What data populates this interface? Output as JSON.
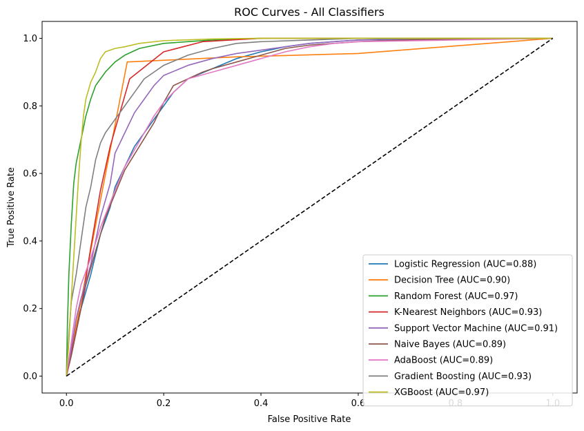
{
  "chart_data": {
    "type": "line",
    "title": "ROC Curves - All Classifiers",
    "xlabel": "False Positive Rate",
    "ylabel": "True Positive Rate",
    "xlim": [
      -0.05,
      1.05
    ],
    "ylim": [
      -0.05,
      1.05
    ],
    "xticks": [
      "0.0",
      "0.2",
      "0.4",
      "0.6",
      "0.8",
      "1.0"
    ],
    "yticks": [
      "0.0",
      "0.2",
      "0.4",
      "0.6",
      "0.8",
      "1.0"
    ],
    "grid": false,
    "legend_position": "lower-right",
    "series": [
      {
        "name": "Logistic Regression (AUC=0.88)",
        "color": "#1f77b4",
        "points": [
          [
            0,
            0
          ],
          [
            0.01,
            0.08
          ],
          [
            0.02,
            0.15
          ],
          [
            0.03,
            0.2
          ],
          [
            0.05,
            0.3
          ],
          [
            0.07,
            0.42
          ],
          [
            0.09,
            0.5
          ],
          [
            0.1,
            0.56
          ],
          [
            0.12,
            0.62
          ],
          [
            0.14,
            0.68
          ],
          [
            0.16,
            0.72
          ],
          [
            0.18,
            0.76
          ],
          [
            0.2,
            0.8
          ],
          [
            0.22,
            0.84
          ],
          [
            0.25,
            0.88
          ],
          [
            0.3,
            0.91
          ],
          [
            0.35,
            0.94
          ],
          [
            0.4,
            0.96
          ],
          [
            0.45,
            0.975
          ],
          [
            0.5,
            0.985
          ],
          [
            0.55,
            0.99
          ],
          [
            0.6,
            0.995
          ],
          [
            0.7,
            0.998
          ],
          [
            1,
            1
          ]
        ]
      },
      {
        "name": "Decision Tree (AUC=0.90)",
        "color": "#ff7f0e",
        "points": [
          [
            0,
            0
          ],
          [
            0.125,
            0.93
          ],
          [
            0.35,
            0.945
          ],
          [
            0.6,
            0.955
          ],
          [
            1,
            1
          ]
        ]
      },
      {
        "name": "Random Forest (AUC=0.97)",
        "color": "#2ca02c",
        "points": [
          [
            0,
            0
          ],
          [
            0.002,
            0.15
          ],
          [
            0.005,
            0.3
          ],
          [
            0.01,
            0.45
          ],
          [
            0.015,
            0.57
          ],
          [
            0.02,
            0.63
          ],
          [
            0.03,
            0.7
          ],
          [
            0.04,
            0.77
          ],
          [
            0.05,
            0.82
          ],
          [
            0.06,
            0.86
          ],
          [
            0.07,
            0.88
          ],
          [
            0.08,
            0.9
          ],
          [
            0.1,
            0.93
          ],
          [
            0.12,
            0.95
          ],
          [
            0.15,
            0.97
          ],
          [
            0.2,
            0.985
          ],
          [
            0.25,
            0.99
          ],
          [
            0.3,
            0.995
          ],
          [
            0.4,
            1.0
          ],
          [
            1,
            1
          ]
        ]
      },
      {
        "name": "K-Nearest Neighbors (AUC=0.93)",
        "color": "#d62728",
        "points": [
          [
            0,
            0
          ],
          [
            0.03,
            0.2
          ],
          [
            0.05,
            0.38
          ],
          [
            0.07,
            0.55
          ],
          [
            0.09,
            0.68
          ],
          [
            0.11,
            0.78
          ],
          [
            0.13,
            0.88
          ],
          [
            0.2,
            0.96
          ],
          [
            0.28,
            0.99
          ],
          [
            0.4,
            1.0
          ],
          [
            1,
            1
          ]
        ]
      },
      {
        "name": "Support Vector Machine (AUC=0.91)",
        "color": "#9467bd",
        "points": [
          [
            0,
            0
          ],
          [
            0.01,
            0.08
          ],
          [
            0.02,
            0.17
          ],
          [
            0.03,
            0.23
          ],
          [
            0.05,
            0.33
          ],
          [
            0.07,
            0.47
          ],
          [
            0.09,
            0.57
          ],
          [
            0.1,
            0.66
          ],
          [
            0.12,
            0.72
          ],
          [
            0.14,
            0.78
          ],
          [
            0.16,
            0.82
          ],
          [
            0.18,
            0.86
          ],
          [
            0.2,
            0.89
          ],
          [
            0.25,
            0.92
          ],
          [
            0.3,
            0.94
          ],
          [
            0.35,
            0.955
          ],
          [
            0.4,
            0.965
          ],
          [
            0.45,
            0.975
          ],
          [
            0.5,
            0.985
          ],
          [
            0.55,
            0.99
          ],
          [
            0.6,
            0.995
          ],
          [
            1,
            1
          ]
        ]
      },
      {
        "name": "Naive Bayes (AUC=0.89)",
        "color": "#8c564b",
        "points": [
          [
            0,
            0
          ],
          [
            0.01,
            0.06
          ],
          [
            0.02,
            0.13
          ],
          [
            0.03,
            0.2
          ],
          [
            0.04,
            0.27
          ],
          [
            0.05,
            0.32
          ],
          [
            0.07,
            0.42
          ],
          [
            0.08,
            0.47
          ],
          [
            0.1,
            0.54
          ],
          [
            0.12,
            0.61
          ],
          [
            0.15,
            0.68
          ],
          [
            0.18,
            0.75
          ],
          [
            0.2,
            0.81
          ],
          [
            0.22,
            0.86
          ],
          [
            0.25,
            0.88
          ],
          [
            0.28,
            0.9
          ],
          [
            0.3,
            0.91
          ],
          [
            0.35,
            0.93
          ],
          [
            0.4,
            0.95
          ],
          [
            0.45,
            0.97
          ],
          [
            0.5,
            0.98
          ],
          [
            0.6,
            0.99
          ],
          [
            0.7,
            0.995
          ],
          [
            1,
            1
          ]
        ]
      },
      {
        "name": "AdaBoost (AUC=0.89)",
        "color": "#e377c2",
        "points": [
          [
            0,
            0
          ],
          [
            0.01,
            0.1
          ],
          [
            0.02,
            0.2
          ],
          [
            0.03,
            0.27
          ],
          [
            0.05,
            0.35
          ],
          [
            0.07,
            0.44
          ],
          [
            0.1,
            0.55
          ],
          [
            0.12,
            0.62
          ],
          [
            0.14,
            0.67
          ],
          [
            0.16,
            0.72
          ],
          [
            0.18,
            0.77
          ],
          [
            0.2,
            0.81
          ],
          [
            0.22,
            0.84
          ],
          [
            0.25,
            0.88
          ],
          [
            0.3,
            0.9
          ],
          [
            0.35,
            0.92
          ],
          [
            0.4,
            0.94
          ],
          [
            0.45,
            0.96
          ],
          [
            0.5,
            0.975
          ],
          [
            0.55,
            0.985
          ],
          [
            0.6,
            0.99
          ],
          [
            1,
            1
          ]
        ]
      },
      {
        "name": "Gradient Boosting (AUC=0.93)",
        "color": "#7f7f7f",
        "points": [
          [
            0,
            0
          ],
          [
            0.005,
            0.12
          ],
          [
            0.01,
            0.22
          ],
          [
            0.02,
            0.3
          ],
          [
            0.03,
            0.4
          ],
          [
            0.04,
            0.5
          ],
          [
            0.05,
            0.56
          ],
          [
            0.06,
            0.64
          ],
          [
            0.07,
            0.69
          ],
          [
            0.08,
            0.72
          ],
          [
            0.1,
            0.76
          ],
          [
            0.12,
            0.8
          ],
          [
            0.14,
            0.84
          ],
          [
            0.16,
            0.88
          ],
          [
            0.18,
            0.9
          ],
          [
            0.2,
            0.92
          ],
          [
            0.25,
            0.95
          ],
          [
            0.3,
            0.97
          ],
          [
            0.35,
            0.985
          ],
          [
            0.4,
            0.99
          ],
          [
            0.5,
            0.995
          ],
          [
            0.6,
            1.0
          ],
          [
            1,
            1
          ]
        ]
      },
      {
        "name": "XGBoost (AUC=0.97)",
        "color": "#bcbd22",
        "points": [
          [
            0,
            0
          ],
          [
            0.005,
            0.1
          ],
          [
            0.01,
            0.23
          ],
          [
            0.015,
            0.35
          ],
          [
            0.02,
            0.47
          ],
          [
            0.025,
            0.59
          ],
          [
            0.03,
            0.69
          ],
          [
            0.035,
            0.77
          ],
          [
            0.04,
            0.82
          ],
          [
            0.05,
            0.87
          ],
          [
            0.06,
            0.9
          ],
          [
            0.07,
            0.94
          ],
          [
            0.08,
            0.96
          ],
          [
            0.1,
            0.97
          ],
          [
            0.12,
            0.975
          ],
          [
            0.15,
            0.985
          ],
          [
            0.2,
            0.993
          ],
          [
            0.3,
            0.998
          ],
          [
            0.4,
            1.0
          ],
          [
            1,
            1
          ]
        ]
      },
      {
        "name": "",
        "color": "#000000",
        "dashed": true,
        "points": [
          [
            0,
            0
          ],
          [
            1,
            1
          ]
        ]
      }
    ]
  }
}
